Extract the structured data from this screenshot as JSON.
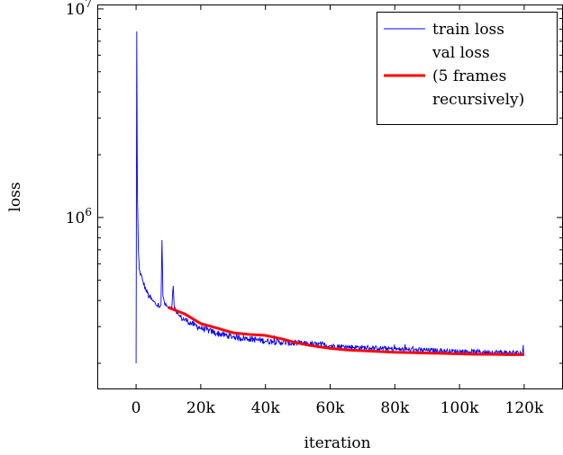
{
  "chart_data": {
    "type": "line",
    "title": "",
    "xlabel": "iteration",
    "ylabel": "loss",
    "x_scale": "linear",
    "y_scale": "log",
    "xlim": [
      -12000,
      132000
    ],
    "ylim": [
      150000,
      10500000
    ],
    "x_ticks": [
      {
        "value": 0,
        "label": "0"
      },
      {
        "value": 20000,
        "label": "20k"
      },
      {
        "value": 40000,
        "label": "40k"
      },
      {
        "value": 60000,
        "label": "60k"
      },
      {
        "value": 80000,
        "label": "80k"
      },
      {
        "value": 100000,
        "label": "100k"
      },
      {
        "value": 120000,
        "label": "120k"
      }
    ],
    "y_major_ticks": [
      {
        "value": 1000000,
        "base": "10",
        "exp": "6"
      },
      {
        "value": 10000000,
        "base": "10",
        "exp": "7"
      }
    ],
    "y_minor_ticks": [
      200000,
      300000,
      400000,
      500000,
      600000,
      700000,
      800000,
      900000,
      2000000,
      3000000,
      4000000,
      5000000,
      6000000,
      7000000,
      8000000,
      9000000
    ],
    "grid": false,
    "legend": {
      "placement": "top-right",
      "entries": [
        {
          "label_lines": [
            "train loss"
          ],
          "series": "train"
        },
        {
          "label_lines": [
            "val loss",
            "(5 frames",
            "recursively)"
          ],
          "series": "val"
        }
      ]
    },
    "series": [
      {
        "id": "train",
        "name": "train loss",
        "color": "#0000ff",
        "noisy": true,
        "noise_amplitude": 0.035,
        "points": [
          [
            0,
            200000
          ],
          [
            200,
            7800000
          ],
          [
            400,
            1300000
          ],
          [
            700,
            700000
          ],
          [
            1000,
            560000
          ],
          [
            2000,
            500000
          ],
          [
            3000,
            450000
          ],
          [
            4000,
            420000
          ],
          [
            5000,
            400000
          ],
          [
            6000,
            385000
          ],
          [
            7000,
            375000
          ],
          [
            7700,
            380000
          ],
          [
            8000,
            780000
          ],
          [
            8300,
            420000
          ],
          [
            9000,
            380000
          ],
          [
            10000,
            370000
          ],
          [
            11000,
            360000
          ],
          [
            11500,
            470000
          ],
          [
            11800,
            370000
          ],
          [
            12500,
            345000
          ],
          [
            14000,
            330000
          ],
          [
            16000,
            318000
          ],
          [
            18000,
            305000
          ],
          [
            20000,
            295000
          ],
          [
            25000,
            278000
          ],
          [
            30000,
            268000
          ],
          [
            35000,
            262000
          ],
          [
            40000,
            256000
          ],
          [
            45000,
            252000
          ],
          [
            50000,
            249000
          ],
          [
            55000,
            246000
          ],
          [
            60000,
            243000
          ],
          [
            65000,
            240000
          ],
          [
            70000,
            238000
          ],
          [
            75000,
            236000
          ],
          [
            80000,
            234000
          ],
          [
            85000,
            232000
          ],
          [
            90000,
            231000
          ],
          [
            95000,
            229000
          ],
          [
            100000,
            228000
          ],
          [
            105000,
            227000
          ],
          [
            110000,
            226000
          ],
          [
            115000,
            225000
          ],
          [
            120000,
            224000
          ]
        ]
      },
      {
        "id": "val",
        "name": "val loss (5 frames recursively)",
        "color": "#ff0000",
        "noisy": false,
        "points": [
          [
            10000,
            370000
          ],
          [
            15000,
            345000
          ],
          [
            20000,
            310000
          ],
          [
            25000,
            295000
          ],
          [
            30000,
            280000
          ],
          [
            35000,
            275000
          ],
          [
            40000,
            272000
          ],
          [
            45000,
            262000
          ],
          [
            50000,
            250000
          ],
          [
            55000,
            242000
          ],
          [
            60000,
            236000
          ],
          [
            65000,
            232000
          ],
          [
            70000,
            230000
          ],
          [
            75000,
            228000
          ],
          [
            80000,
            226000
          ],
          [
            85000,
            225000
          ],
          [
            90000,
            224000
          ],
          [
            95000,
            223000
          ],
          [
            100000,
            222000
          ],
          [
            105000,
            221000
          ],
          [
            110000,
            221000
          ],
          [
            115000,
            220000
          ],
          [
            120000,
            220000
          ]
        ]
      }
    ]
  }
}
